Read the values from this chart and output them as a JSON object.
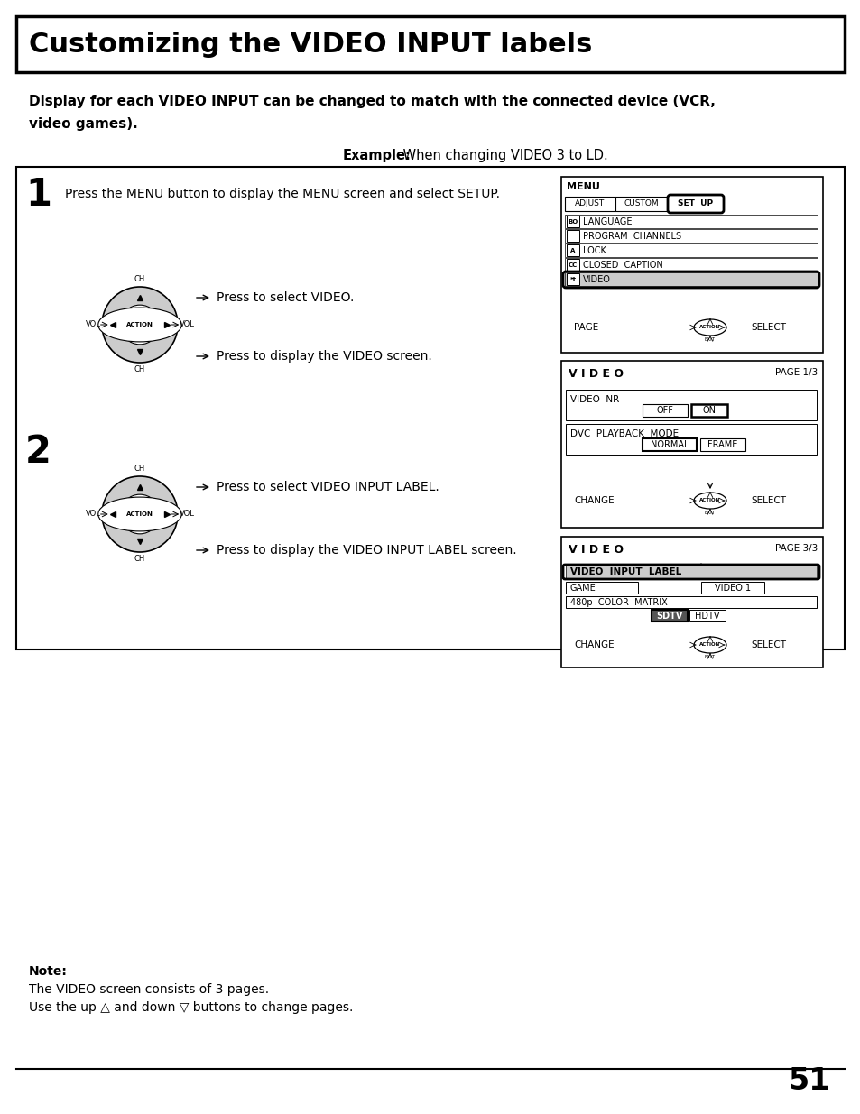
{
  "title": "Customizing the VIDEO INPUT labels",
  "page_number": "51",
  "background_color": "#ffffff",
  "subtitle_bold": "Display for each VIDEO INPUT can be changed to match with the connected device (VCR,\nvideo games).",
  "example_label": "Example:",
  "example_rest": " When changing VIDEO 3 to LD.",
  "step1_text": "Press the MENU button to display the MENU screen and select SETUP.",
  "step2_number": "2",
  "arrow_text1": "Press to select VIDEO.",
  "arrow_text2": "Press to display the VIDEO screen.",
  "step2_arrow_text1": "Press to select VIDEO INPUT LABEL.",
  "step2_arrow_text2": "Press to display the VIDEO INPUT LABEL screen.",
  "note_title": "Note:",
  "note_line1": "The VIDEO screen consists of 3 pages.",
  "note_line2": "Use the up △ and down ▽ buttons to change pages."
}
